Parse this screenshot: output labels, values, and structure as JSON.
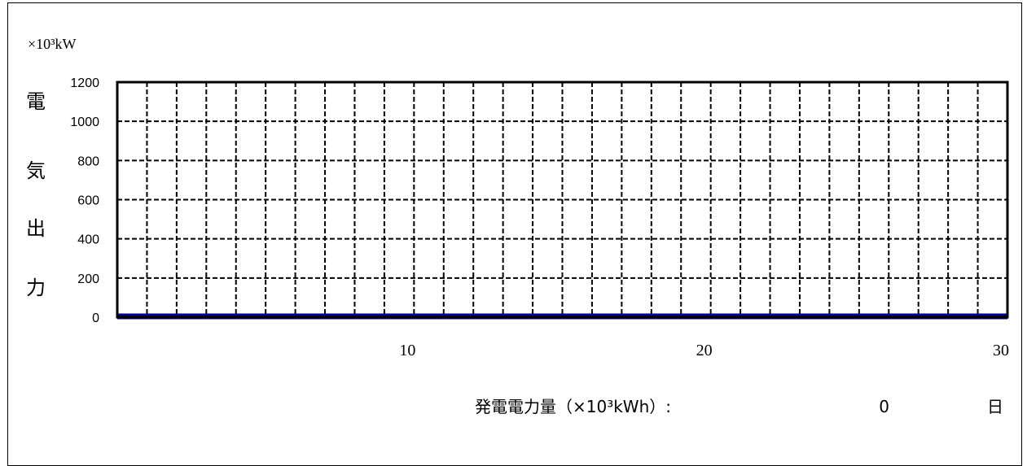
{
  "chart_data": {
    "type": "line",
    "y_unit_label": "×10³kW",
    "ylabel_chars": [
      "電",
      "気",
      "出",
      "力"
    ],
    "ylim": [
      0,
      1200
    ],
    "y_ticks": [
      0,
      200,
      400,
      600,
      800,
      1000,
      1200
    ],
    "y_tick_labels": [
      "0",
      "200",
      "400",
      "600",
      "800",
      "1000",
      "1200"
    ],
    "xlim": [
      0,
      30
    ],
    "x_ticks": [
      10,
      20,
      30
    ],
    "x_tick_labels": [
      "10",
      "20",
      "30"
    ],
    "x_grid_step": 1,
    "grid": true,
    "series": [
      {
        "x": [
          0,
          30
        ],
        "y": [
          0,
          0
        ],
        "color": "#000080"
      }
    ],
    "footer": {
      "energy_label": "発電電力量（×10³kWh）:",
      "energy_value": "0",
      "day_label": "日"
    }
  }
}
